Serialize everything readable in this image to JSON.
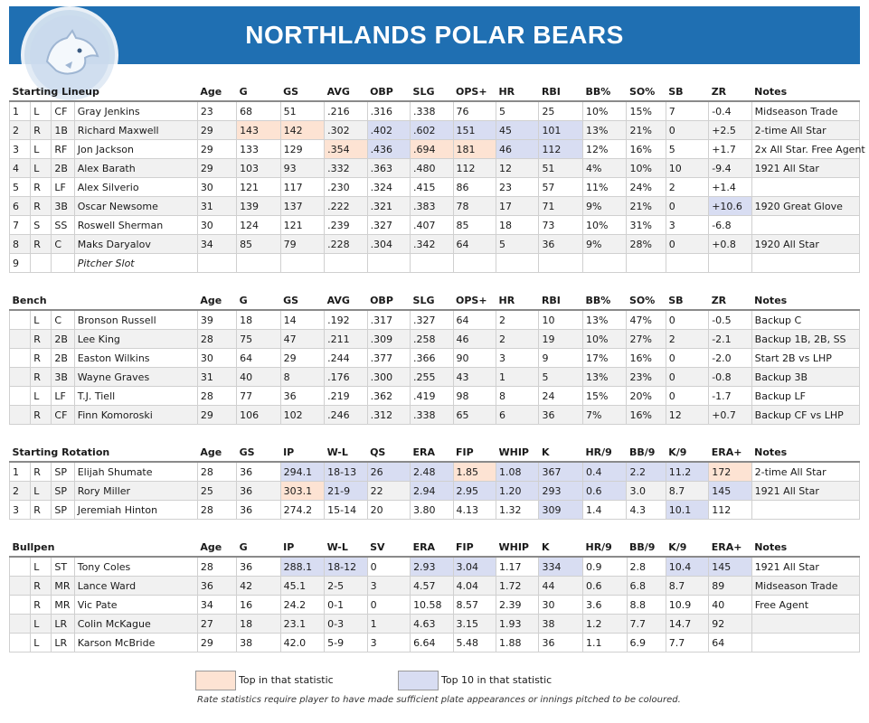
{
  "header": {
    "title": "NORTHLANDS POLAR BEARS"
  },
  "colors": {
    "header_bg": "#1f6fb2",
    "top": "#fde3d3",
    "top10": "#d8ddf2"
  },
  "sections": [
    {
      "key": "lineup",
      "top": 92,
      "columns": [
        "Starting Lineup",
        "",
        "",
        "Age",
        "G",
        "GS",
        "AVG",
        "OBP",
        "SLG",
        "OPS+",
        "HR",
        "RBI",
        "BB%",
        "SO%",
        "SB",
        "ZR",
        "Notes"
      ],
      "rows": [
        {
          "cells": [
            "1",
            "L",
            "CF",
            "Gray Jenkins",
            "23",
            "68",
            "51",
            ".216",
            ".316",
            ".338",
            "76",
            "5",
            "25",
            "10%",
            "15%",
            "7",
            "-0.4",
            "Midseason Trade"
          ],
          "top": [],
          "ten": []
        },
        {
          "cells": [
            "2",
            "R",
            "1B",
            "Richard Maxwell",
            "29",
            "143",
            "142",
            ".302",
            ".402",
            ".602",
            "151",
            "45",
            "101",
            "13%",
            "21%",
            "0",
            "+2.5",
            "2-time All Star"
          ],
          "top": [
            5,
            6
          ],
          "ten": [
            8,
            9,
            10,
            11,
            12
          ]
        },
        {
          "cells": [
            "3",
            "L",
            "RF",
            "Jon Jackson",
            "29",
            "133",
            "129",
            ".354",
            ".436",
            ".694",
            "181",
            "46",
            "112",
            "12%",
            "16%",
            "5",
            "+1.7",
            "2x All Star. Free Agent"
          ],
          "top": [
            7,
            9,
            10
          ],
          "ten": [
            8,
            11,
            12
          ]
        },
        {
          "cells": [
            "4",
            "L",
            "2B",
            "Alex Barath",
            "29",
            "103",
            "93",
            ".332",
            ".363",
            ".480",
            "112",
            "12",
            "51",
            "4%",
            "10%",
            "10",
            "-9.4",
            "1921 All Star"
          ],
          "top": [],
          "ten": []
        },
        {
          "cells": [
            "5",
            "R",
            "LF",
            "Alex Silverio",
            "30",
            "121",
            "117",
            ".230",
            ".324",
            ".415",
            "86",
            "23",
            "57",
            "11%",
            "24%",
            "2",
            "+1.4",
            ""
          ],
          "top": [],
          "ten": []
        },
        {
          "cells": [
            "6",
            "R",
            "3B",
            "Oscar Newsome",
            "31",
            "139",
            "137",
            ".222",
            ".321",
            ".383",
            "78",
            "17",
            "71",
            "9%",
            "21%",
            "0",
            "+10.6",
            "1920 Great Glove"
          ],
          "top": [],
          "ten": [
            16
          ]
        },
        {
          "cells": [
            "7",
            "S",
            "SS",
            "Roswell Sherman",
            "30",
            "124",
            "121",
            ".239",
            ".327",
            ".407",
            "85",
            "18",
            "73",
            "10%",
            "31%",
            "3",
            "-6.8",
            ""
          ],
          "top": [],
          "ten": []
        },
        {
          "cells": [
            "8",
            "R",
            "C",
            "Maks Daryalov",
            "34",
            "85",
            "79",
            ".228",
            ".304",
            ".342",
            "64",
            "5",
            "36",
            "9%",
            "28%",
            "0",
            "+0.8",
            "1920 All Star"
          ],
          "top": [],
          "ten": []
        },
        {
          "cells": [
            "9",
            "",
            "",
            "Pitcher Slot",
            "",
            "",
            "",
            "",
            "",
            "",
            "",
            "",
            "",
            "",
            "",
            "",
            "",
            ""
          ],
          "top": [],
          "ten": [],
          "italic": [
            3
          ]
        }
      ]
    },
    {
      "key": "bench",
      "top": 323,
      "columns": [
        "Bench",
        "",
        "",
        "Age",
        "G",
        "GS",
        "AVG",
        "OBP",
        "SLG",
        "OPS+",
        "HR",
        "RBI",
        "BB%",
        "SO%",
        "SB",
        "ZR",
        "Notes"
      ],
      "rows": [
        {
          "cells": [
            "",
            "L",
            "C",
            "Bronson Russell",
            "39",
            "18",
            "14",
            ".192",
            ".317",
            ".327",
            "64",
            "2",
            "10",
            "13%",
            "47%",
            "0",
            "-0.5",
            "Backup C"
          ],
          "top": [],
          "ten": []
        },
        {
          "cells": [
            "",
            "R",
            "2B",
            "Lee King",
            "28",
            "75",
            "47",
            ".211",
            ".309",
            ".258",
            "46",
            "2",
            "19",
            "10%",
            "27%",
            "2",
            "-2.1",
            "Backup 1B, 2B, SS"
          ],
          "top": [],
          "ten": []
        },
        {
          "cells": [
            "",
            "R",
            "2B",
            "Easton Wilkins",
            "30",
            "64",
            "29",
            ".244",
            ".377",
            ".366",
            "90",
            "3",
            "9",
            "17%",
            "16%",
            "0",
            "-2.0",
            "Start 2B vs LHP"
          ],
          "top": [],
          "ten": []
        },
        {
          "cells": [
            "",
            "R",
            "3B",
            "Wayne Graves",
            "31",
            "40",
            "8",
            ".176",
            ".300",
            ".255",
            "43",
            "1",
            "5",
            "13%",
            "23%",
            "0",
            "-0.8",
            "Backup 3B"
          ],
          "top": [],
          "ten": []
        },
        {
          "cells": [
            "",
            "L",
            "LF",
            "T.J. Tiell",
            "28",
            "77",
            "36",
            ".219",
            ".362",
            ".419",
            "98",
            "8",
            "24",
            "15%",
            "20%",
            "0",
            "-1.7",
            "Backup LF"
          ],
          "top": [],
          "ten": []
        },
        {
          "cells": [
            "",
            "R",
            "CF",
            "Finn Komoroski",
            "29",
            "106",
            "102",
            ".246",
            ".312",
            ".338",
            "65",
            "6",
            "36",
            "7%",
            "16%",
            "12",
            "+0.7",
            "Backup CF vs LHP"
          ],
          "top": [],
          "ten": []
        }
      ]
    },
    {
      "key": "rotation",
      "top": 491,
      "columns": [
        "Starting Rotation",
        "",
        "",
        "Age",
        "GS",
        "IP",
        "W-L",
        "QS",
        "ERA",
        "FIP",
        "WHIP",
        "K",
        "HR/9",
        "BB/9",
        "K/9",
        "ERA+",
        "Notes"
      ],
      "rows": [
        {
          "cells": [
            "1",
            "R",
            "SP",
            "Elijah Shumate",
            "28",
            "36",
            "294.1",
            "18-13",
            "26",
            "2.48",
            "1.85",
            "1.08",
            "367",
            "0.4",
            "2.2",
            "11.2",
            "172",
            "2-time All Star"
          ],
          "top": [
            10,
            16
          ],
          "ten": [
            6,
            7,
            8,
            9,
            11,
            12,
            13,
            14,
            15
          ]
        },
        {
          "cells": [
            "2",
            "L",
            "SP",
            "Rory Miller",
            "25",
            "36",
            "303.1",
            "21-9",
            "22",
            "2.94",
            "2.95",
            "1.20",
            "293",
            "0.6",
            "3.0",
            "8.7",
            "145",
            "1921 All Star"
          ],
          "top": [
            6
          ],
          "ten": [
            7,
            9,
            10,
            11,
            12,
            13,
            16
          ]
        },
        {
          "cells": [
            "3",
            "R",
            "SP",
            "Jeremiah Hinton",
            "28",
            "36",
            "274.2",
            "15-14",
            "20",
            "3.80",
            "4.13",
            "1.32",
            "309",
            "1.4",
            "4.3",
            "10.1",
            "112",
            ""
          ],
          "top": [],
          "ten": [
            12,
            15
          ]
        }
      ]
    },
    {
      "key": "bullpen",
      "top": 596,
      "columns": [
        "Bullpen",
        "",
        "",
        "Age",
        "G",
        "IP",
        "W-L",
        "SV",
        "ERA",
        "FIP",
        "WHIP",
        "K",
        "HR/9",
        "BB/9",
        "K/9",
        "ERA+",
        "Notes"
      ],
      "rows": [
        {
          "cells": [
            "",
            "L",
            "ST",
            "Tony Coles",
            "28",
            "36",
            "288.1",
            "18-12",
            "0",
            "2.93",
            "3.04",
            "1.17",
            "334",
            "0.9",
            "2.8",
            "10.4",
            "145",
            "1921 All Star"
          ],
          "top": [],
          "ten": [
            6,
            7,
            9,
            10,
            12,
            15,
            16
          ]
        },
        {
          "cells": [
            "",
            "R",
            "MR",
            "Lance Ward",
            "36",
            "42",
            "45.1",
            "2-5",
            "3",
            "4.57",
            "4.04",
            "1.72",
            "44",
            "0.6",
            "6.8",
            "8.7",
            "89",
            "Midseason Trade"
          ],
          "top": [],
          "ten": []
        },
        {
          "cells": [
            "",
            "R",
            "MR",
            "Vic Pate",
            "34",
            "16",
            "24.2",
            "0-1",
            "0",
            "10.58",
            "8.57",
            "2.39",
            "30",
            "3.6",
            "8.8",
            "10.9",
            "40",
            "Free Agent"
          ],
          "top": [],
          "ten": []
        },
        {
          "cells": [
            "",
            "L",
            "LR",
            "Colin McKague",
            "27",
            "18",
            "23.1",
            "0-3",
            "1",
            "4.63",
            "3.15",
            "1.93",
            "38",
            "1.2",
            "7.7",
            "14.7",
            "92",
            ""
          ],
          "top": [],
          "ten": []
        },
        {
          "cells": [
            "",
            "L",
            "LR",
            "Karson McBride",
            "29",
            "38",
            "42.0",
            "5-9",
            "3",
            "6.64",
            "5.48",
            "1.88",
            "36",
            "1.1",
            "6.9",
            "7.7",
            "64",
            ""
          ],
          "top": [],
          "ten": []
        }
      ]
    }
  ],
  "legend": {
    "top_label": "Top in that statistic",
    "top10_label": "Top 10 in that statistic",
    "footnote": "Rate statistics require player to have made sufficient plate appearances or innings pitched to be coloured."
  }
}
